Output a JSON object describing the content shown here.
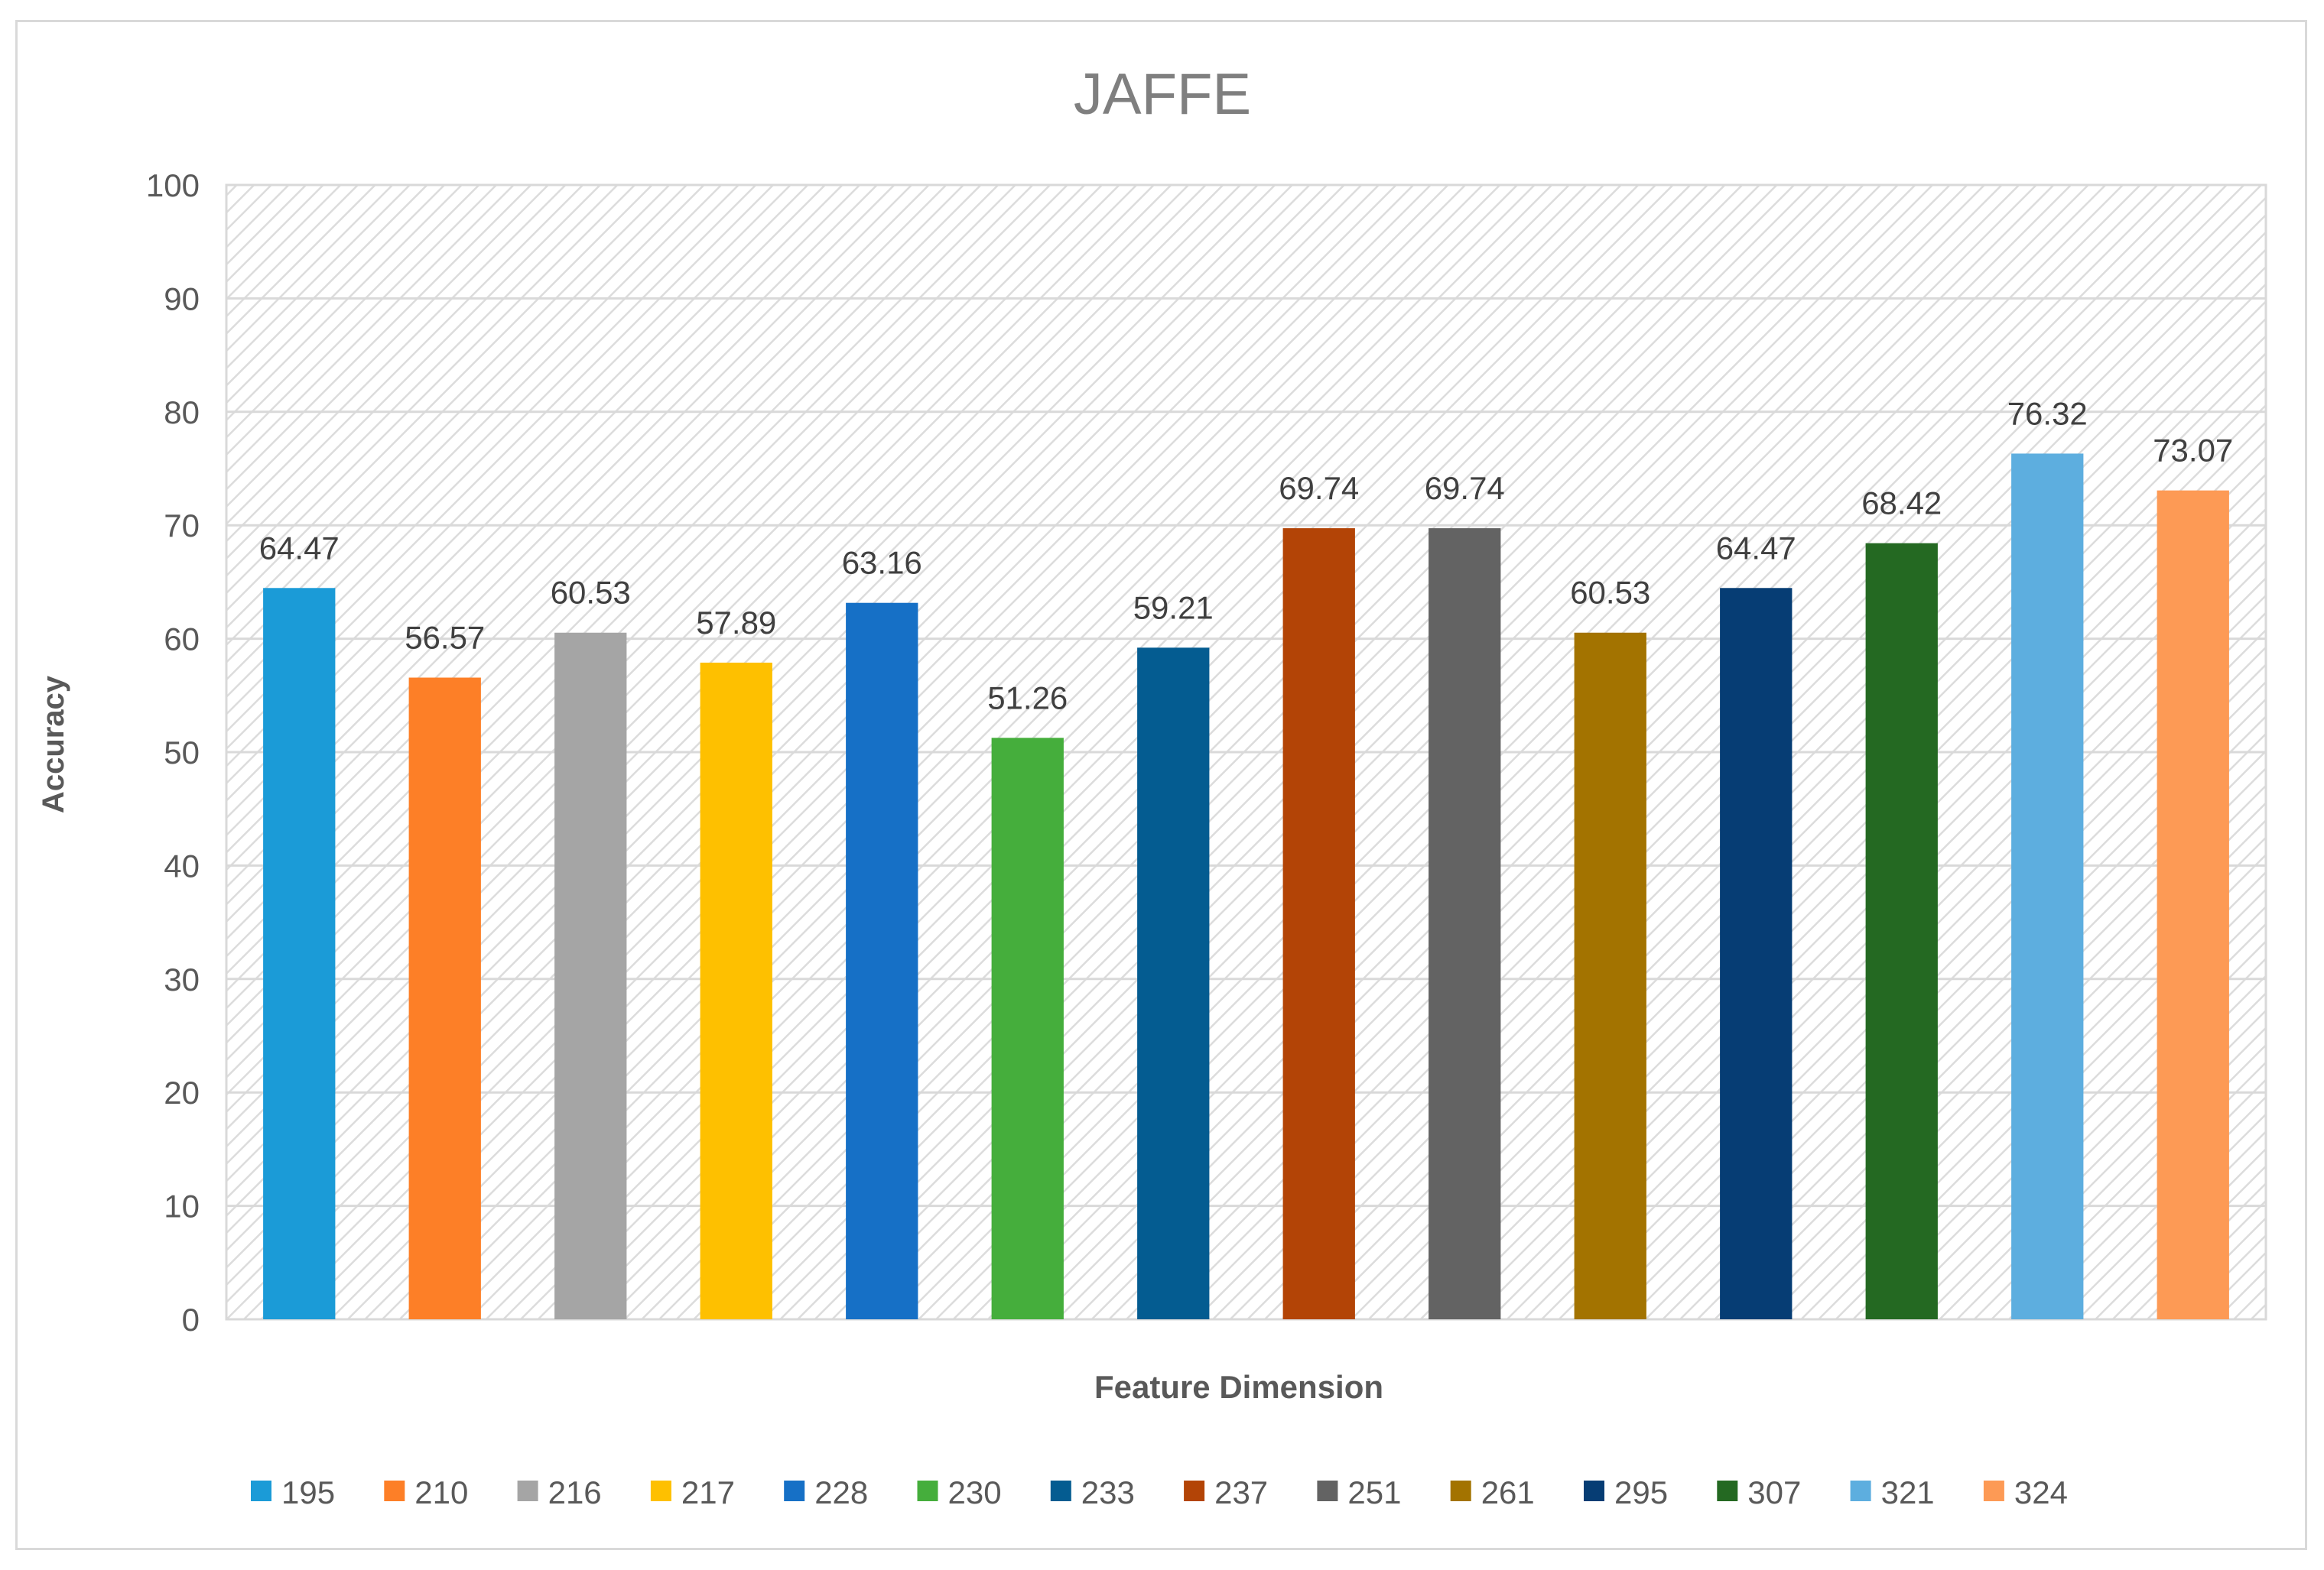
{
  "chart_data": {
    "type": "bar",
    "title": "JAFFE",
    "xlabel": "Feature Dimension",
    "ylabel": "Accuracy",
    "ylim": [
      0,
      100
    ],
    "yticks": [
      "0",
      "10",
      "20",
      "30",
      "40",
      "50",
      "60",
      "70",
      "80",
      "90",
      "100"
    ],
    "grid": true,
    "legend_position": "bottom",
    "series": [
      {
        "name": "195",
        "value": 64.47,
        "label": "64.47",
        "color": "#1b9bd7"
      },
      {
        "name": "210",
        "value": 56.57,
        "label": "56.57",
        "color": "#fd7f27"
      },
      {
        "name": "216",
        "value": 60.53,
        "label": "60.53",
        "color": "#a5a5a5"
      },
      {
        "name": "217",
        "value": 57.89,
        "label": "57.89",
        "color": "#fec000"
      },
      {
        "name": "228",
        "value": 63.16,
        "label": "63.16",
        "color": "#1670c6"
      },
      {
        "name": "230",
        "value": 51.26,
        "label": "51.26",
        "color": "#45ae3c"
      },
      {
        "name": "233",
        "value": 59.21,
        "label": "59.21",
        "color": "#045c91"
      },
      {
        "name": "237",
        "value": 69.74,
        "label": "69.74",
        "color": "#b34406"
      },
      {
        "name": "251",
        "value": 69.74,
        "label": "69.74",
        "color": "#636363"
      },
      {
        "name": "261",
        "value": 60.53,
        "label": "60.53",
        "color": "#a37300"
      },
      {
        "name": "295",
        "value": 64.47,
        "label": "64.47",
        "color": "#063d74"
      },
      {
        "name": "307",
        "value": 68.42,
        "label": "68.42",
        "color": "#246922"
      },
      {
        "name": "321",
        "value": 76.32,
        "label": "76.32",
        "color": "#5daedf"
      },
      {
        "name": "324",
        "value": 73.07,
        "label": "73.07",
        "color": "#fd9a55"
      }
    ]
  }
}
